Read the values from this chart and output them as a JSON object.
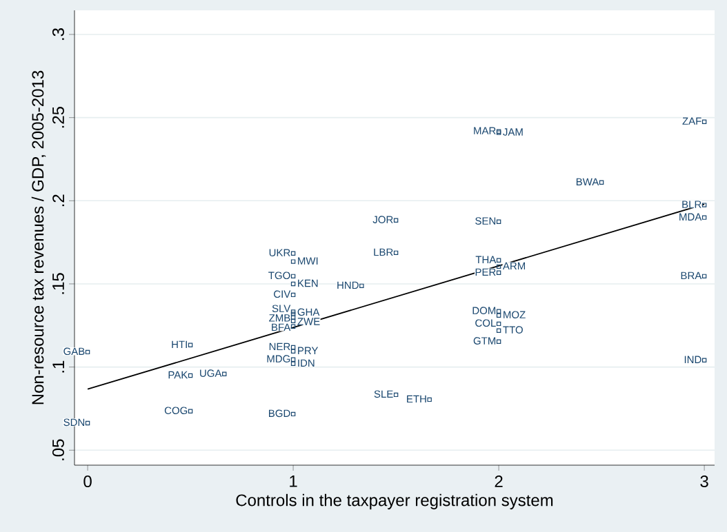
{
  "chart_data": {
    "type": "scatter",
    "xlabel": "Controls in the taxpayer registration system",
    "ylabel": "Non-resource tax revenues / GDP, 2005-2013",
    "xlim": [
      -0.064,
      3.05
    ],
    "ylim": [
      0.041,
      0.3145
    ],
    "xticks": [
      0,
      1,
      2,
      3
    ],
    "yticks": [
      {
        "value": 0.05,
        "label": ".05"
      },
      {
        "value": 0.1,
        "label": ".1"
      },
      {
        "value": 0.15,
        "label": ".15"
      },
      {
        "value": 0.2,
        "label": ".2"
      },
      {
        "value": 0.25,
        "label": ".25"
      },
      {
        "value": 0.3,
        "label": ".3"
      }
    ],
    "grid": "y",
    "marker": "square",
    "series": [
      {
        "color": "#1a476f",
        "x": [
          0,
          0,
          0.5,
          0.5,
          0.665,
          0.5,
          1,
          1,
          1,
          1,
          1,
          1,
          1,
          1,
          1,
          1,
          1,
          1,
          1,
          1,
          1,
          1.333,
          1.5,
          1.5,
          1.5,
          1.663,
          2,
          2,
          2,
          2,
          2,
          2,
          2,
          2,
          2,
          2,
          2,
          2.5,
          3,
          3,
          3,
          3,
          3
        ],
        "values": [
          0.109,
          0.0663,
          0.1132,
          0.0949,
          0.0958,
          0.0734,
          0.0717,
          0.1683,
          0.1634,
          0.1546,
          0.15,
          0.1434,
          0.1332,
          0.1319,
          0.1298,
          0.1277,
          0.1244,
          0.1119,
          0.1095,
          0.1045,
          0.102,
          0.1488,
          0.1882,
          0.1687,
          0.0833,
          0.0804,
          0.2417,
          0.2409,
          0.1874,
          0.1642,
          0.1604,
          0.1567,
          0.1335,
          0.131,
          0.126,
          0.1219,
          0.1153,
          0.211,
          0.2475,
          0.1974,
          0.1899,
          0.1546,
          0.1041
        ],
        "value_labels": [
          "GAB",
          "SDN",
          "HTI",
          "PAK",
          "UGA",
          "COG",
          "BGD",
          "UKR",
          "MWI",
          "TGO",
          "KEN",
          "CIV",
          "SLV",
          "GHA",
          "ZMB",
          "ZWE",
          "BFA",
          "NER",
          "PRY",
          "MDG",
          "IDN",
          "HND",
          "JOR",
          "LBR",
          "SLE",
          "ETH",
          "MAR",
          "JAM",
          "SEN",
          "THA",
          "ARM",
          "PER",
          "DOM",
          "MOZ",
          "COL",
          "TTO",
          "GTM",
          "BWA",
          "ZAF",
          "BLR",
          "MDA",
          "BRA",
          "IND"
        ]
      },
      {
        "type": "line",
        "color": "#000000",
        "marker": "none",
        "x": [
          0,
          3
        ],
        "values": [
          0.0867,
          0.1979
        ]
      }
    ]
  }
}
